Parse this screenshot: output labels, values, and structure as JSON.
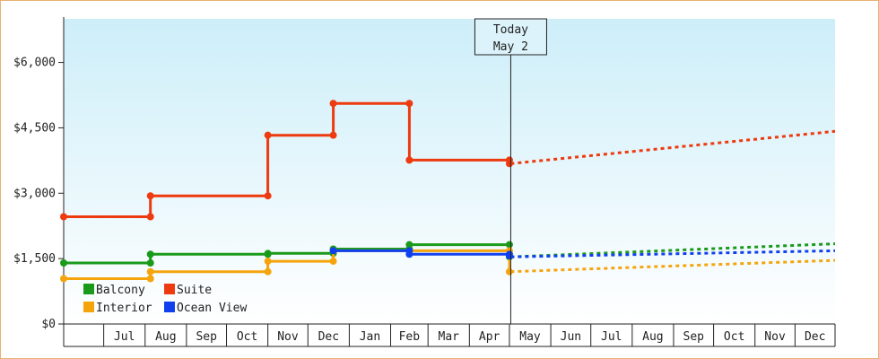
{
  "chart_data": {
    "type": "line",
    "title": "",
    "xlabel": "",
    "ylabel": "",
    "ylim": [
      0,
      7000
    ],
    "y_ticks": [
      {
        "value": 0,
        "label": "$0"
      },
      {
        "value": 1500,
        "label": "$1,500"
      },
      {
        "value": 3000,
        "label": "$3,000"
      },
      {
        "value": 4500,
        "label": "$4,500"
      },
      {
        "value": 6000,
        "label": "$6,000"
      }
    ],
    "x_range": [
      "2024-06-01",
      "2025-12-31"
    ],
    "month_ticks": [
      "Jul",
      "Aug",
      "Sep",
      "Oct",
      "Nov",
      "Dec",
      "Jan",
      "Feb",
      "Mar",
      "Apr",
      "May",
      "Jun",
      "Jul",
      "Aug",
      "Sep",
      "Oct",
      "Nov",
      "Dec"
    ],
    "today_marker": {
      "date": "2025-05-02",
      "line1": "Today",
      "line2": "May 2"
    },
    "legend": [
      "Balcony",
      "Suite",
      "Interior",
      "Ocean View"
    ],
    "grid": false,
    "series": [
      {
        "name": "Balcony",
        "color": "#1a9a1a",
        "step_points": [
          {
            "date": "2024-06-01",
            "value": 1400
          },
          {
            "date": "2024-08-05",
            "value": 1400
          },
          {
            "date": "2024-08-05",
            "value": 1600
          },
          {
            "date": "2024-11-01",
            "value": 1600
          },
          {
            "date": "2024-11-01",
            "value": 1620
          },
          {
            "date": "2024-12-20",
            "value": 1620
          },
          {
            "date": "2024-12-20",
            "value": 1720
          },
          {
            "date": "2025-02-15",
            "value": 1720
          },
          {
            "date": "2025-02-15",
            "value": 1820
          },
          {
            "date": "2025-05-01",
            "value": 1820
          },
          {
            "date": "2025-05-01",
            "value": 1540
          }
        ],
        "forecast": [
          {
            "date": "2025-05-02",
            "value": 1540
          },
          {
            "date": "2025-12-31",
            "value": 1840
          }
        ]
      },
      {
        "name": "Suite",
        "color": "#ee3a0f",
        "step_points": [
          {
            "date": "2024-06-01",
            "value": 2460
          },
          {
            "date": "2024-08-05",
            "value": 2460
          },
          {
            "date": "2024-08-05",
            "value": 2940
          },
          {
            "date": "2024-11-01",
            "value": 2940
          },
          {
            "date": "2024-11-01",
            "value": 4330
          },
          {
            "date": "2024-12-20",
            "value": 4330
          },
          {
            "date": "2024-12-20",
            "value": 5060
          },
          {
            "date": "2025-02-15",
            "value": 5060
          },
          {
            "date": "2025-02-15",
            "value": 3760
          },
          {
            "date": "2025-05-01",
            "value": 3760
          },
          {
            "date": "2025-05-01",
            "value": 3680
          }
        ],
        "forecast": [
          {
            "date": "2025-05-02",
            "value": 3680
          },
          {
            "date": "2025-12-31",
            "value": 4420
          }
        ]
      },
      {
        "name": "Interior",
        "color": "#f5a40c",
        "step_points": [
          {
            "date": "2024-06-01",
            "value": 1040
          },
          {
            "date": "2024-08-05",
            "value": 1040
          },
          {
            "date": "2024-08-05",
            "value": 1200
          },
          {
            "date": "2024-11-01",
            "value": 1200
          },
          {
            "date": "2024-11-01",
            "value": 1440
          },
          {
            "date": "2024-12-20",
            "value": 1440
          },
          {
            "date": "2024-12-20",
            "value": 1680
          },
          {
            "date": "2025-02-15",
            "value": 1680
          },
          {
            "date": "2025-05-01",
            "value": 1680
          },
          {
            "date": "2025-05-01",
            "value": 1200
          }
        ],
        "forecast": [
          {
            "date": "2025-05-02",
            "value": 1200
          },
          {
            "date": "2025-12-31",
            "value": 1460
          }
        ]
      },
      {
        "name": "Ocean View",
        "color": "#1040ee",
        "step_points": [
          {
            "date": "2024-12-20",
            "value": 1680
          },
          {
            "date": "2025-02-15",
            "value": 1680
          },
          {
            "date": "2025-02-15",
            "value": 1600
          },
          {
            "date": "2025-05-01",
            "value": 1600
          },
          {
            "date": "2025-05-01",
            "value": 1560
          }
        ],
        "forecast": [
          {
            "date": "2025-05-02",
            "value": 1540
          },
          {
            "date": "2025-12-31",
            "value": 1680
          }
        ]
      }
    ]
  }
}
